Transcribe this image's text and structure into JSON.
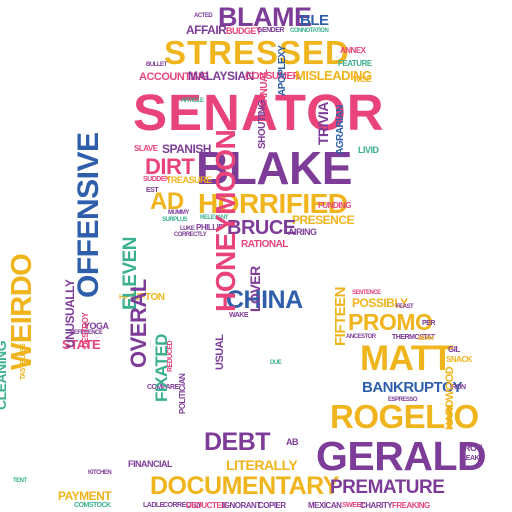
{
  "colors": {
    "pink": "#e8447a",
    "purple": "#7d3c98",
    "yellow": "#f0b41c",
    "blue": "#2f5faa",
    "green": "#3bb08f"
  },
  "words": {
    "senator": "SENATOR",
    "stressed": "STRESSED",
    "blake": "BLAKE",
    "horrified": "HORRIFIED",
    "blame": "BLAME",
    "dirt": "DIRT",
    "ad": "AD",
    "bruce": "BRUCE",
    "trivia": "TRIVIA",
    "agrarian": "AGRARIAN",
    "shouting": "SHOUTING",
    "affair": "AFFAIR",
    "budget": "BUDGET",
    "ble": "BLE",
    "vulgar": "VULGAR",
    "accounting": "ACCOUNTING",
    "malaysian": "MALAYSIAN",
    "consumer": "CONSUMER",
    "misleading": "MISLEADING",
    "treasure": "TREASURE",
    "spanish": "SPANISH",
    "slave": "SLAVE",
    "presence": "PRESENCE",
    "funding": "FUNDING",
    "airing": "AIRING",
    "phillip": "PHILLIP",
    "rational": "RATIONAL",
    "manual": "MANUAL",
    "apoplexy": "APOPLEXY",
    "livid": "LIVID",
    "feature": "FEATURE",
    "wise": "WISE",
    "correctly": "CORRECTLY",
    "relevant": "RELEVANT",
    "surplus": "SURPLUS",
    "mummy": "MUMMY",
    "offensive": "OFFENSIVE",
    "weirdo": "WEIRDO",
    "overall": "OVERAL",
    "eleven": "ELEVEN",
    "fixated": "FIXATED",
    "unusually": "UNUSUALLY",
    "destroy": "DESTROY",
    "state": "STATE",
    "cleaning": "CLEANING",
    "payment": "PAYMENT",
    "documentary": "DOCUMENTARY",
    "china": "CHINA",
    "honeymoon": "HONEYMOON",
    "debt": "DEBT",
    "literally": "LITERALLY",
    "lover": "LOVER",
    "usual": "USUAL",
    "financial": "FINANCIAL",
    "politician": "POLITICIAN",
    "lipton": "LIPTON",
    "yoga": "YOGA",
    "promo": "PROMO",
    "matt": "MATT",
    "rogelio": "ROGELIO",
    "gerald": "GERALD",
    "premature": "PREMATURE",
    "bankruptcy": "BANKRUPTCY",
    "fifteen": "FIFTEEN",
    "possibly": "POSSIBLY",
    "hardwood": "HARDWOOD",
    "charity": "CHARITY",
    "mexican": "MEXICAN",
    "ignorant": "IGNORANT",
    "copier": "COPIER",
    "deducted": "DEDUCTED",
    "ladle": "LADLE",
    "comstock": "COMSTOCK",
    "thermostat": "THERMOSTAT",
    "ancestor": "ANCESTOR",
    "roy": "ROY",
    "snack": "SNACK",
    "acted": "ACTED",
    "gender": "GENDER",
    "connotation": "CONNOTATION",
    "annex": "ANNEX",
    "bullet": "BULLET",
    "suddent": "SUDDEN",
    "est": "EST",
    "article": "ARTICLE",
    "luke": "LUKE",
    "kitchen": "KITCHEN",
    "tent": "TENT",
    "reference": "REFERENCE",
    "compare": "COMPARE",
    "per": "PER",
    "gil": "GIL",
    "leak": "LEAK",
    "feast": "FEAST",
    "dean": "DEAN",
    "expresso": "ESPRESSO",
    "iron": "IRON",
    "tasteless": "TASTELESS",
    "receive": "RECEIVE",
    "freaking": "FREAKING",
    "sweet": "SWEET",
    "reduced": "REDUCED",
    "sentence": "SENTENCE",
    "hunt": "HUNT",
    "hip": "HIP",
    "due": "DUE",
    "wake": "WAKE",
    "heat": "HEAT",
    "ab": "AB"
  }
}
